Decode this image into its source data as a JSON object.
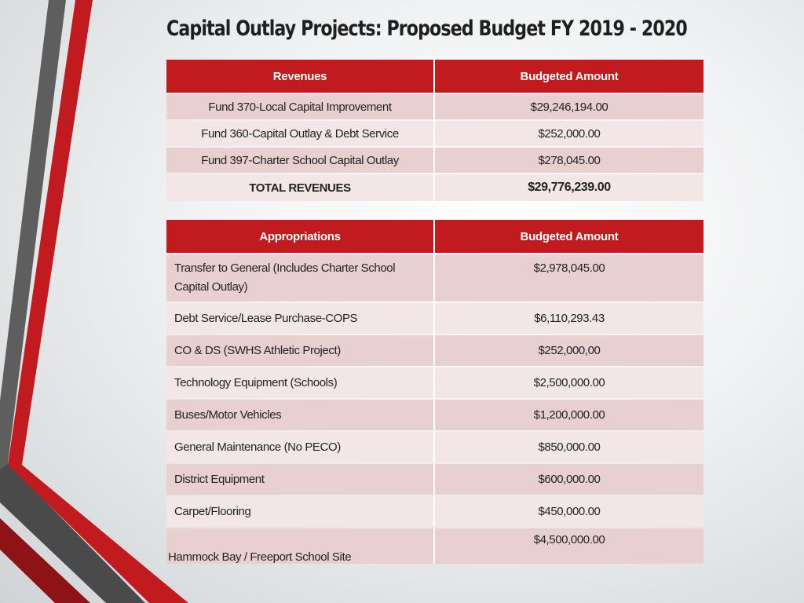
{
  "title": "Capital Outlay Projects: Proposed Budget FY 2019 - 2020",
  "colors": {
    "accent": "#c11b1f",
    "row_dark": "#e8cfd0",
    "row_light": "#f3e6e7"
  },
  "revenues": {
    "header_label": "Revenues",
    "header_amount": "Budgeted Amount",
    "rows": [
      {
        "label": "Fund 370-Local Capital Improvement",
        "amount": "$29,246,194.00"
      },
      {
        "label": "Fund 360-Capital Outlay & Debt Service",
        "amount": "$252,000.00"
      },
      {
        "label": "Fund 397-Charter School Capital Outlay",
        "amount": "$278,045.00"
      }
    ],
    "total_label": "TOTAL REVENUES",
    "total_amount": "$29,776,239.00"
  },
  "appropriations": {
    "header_label": "Appropriations",
    "header_amount": "Budgeted Amount",
    "rows": [
      {
        "label": "Transfer to General (Includes Charter School Capital Outlay)",
        "amount": "$2,978,045.00"
      },
      {
        "label": "Debt Service/Lease Purchase-COPS",
        "amount": "$6,110,293.43"
      },
      {
        "label": "CO & DS (SWHS Athletic Project)",
        "amount": "$252,000,00"
      },
      {
        "label": "Technology Equipment (Schools)",
        "amount": "$2,500,000.00"
      },
      {
        "label": "Buses/Motor Vehicles",
        "amount": "$1,200,000.00"
      },
      {
        "label": "General Maintenance (No PECO)",
        "amount": "$850,000.00"
      },
      {
        "label": "District Equipment",
        "amount": "$600,000.00"
      },
      {
        "label": "Carpet/Flooring",
        "amount": "$450,000.00"
      },
      {
        "label": "Hammock Bay / Freeport School Site",
        "amount": "$4,500,000.00"
      }
    ]
  }
}
